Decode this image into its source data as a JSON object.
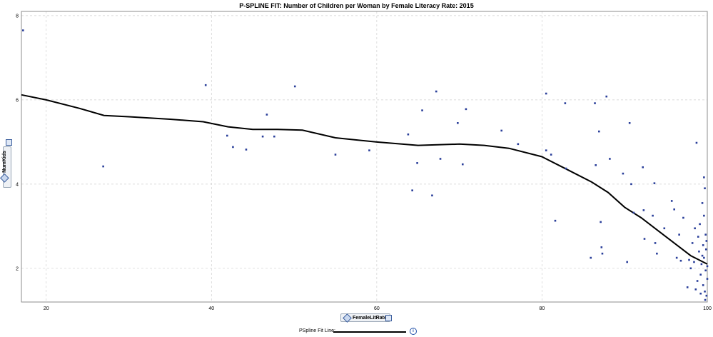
{
  "chart_data": {
    "type": "scatter",
    "title": "P-SPLINE FIT:  Number of Children per Woman by Female Literacy Rate:  2015",
    "xlabel": "FemaleLitRate",
    "ylabel": "NumKids",
    "xlim": [
      17,
      100
    ],
    "ylim": [
      1.2,
      8.1
    ],
    "xticks": [
      20,
      40,
      60,
      80,
      100
    ],
    "yticks": [
      2,
      4,
      6,
      8
    ],
    "grid": true,
    "legend": "bottom",
    "colors": {
      "points": "#2a3f9a",
      "line": "#000000",
      "grid": "#cfcfcf"
    },
    "points": [
      [
        17.2,
        7.65
      ],
      [
        26.9,
        4.42
      ],
      [
        39.3,
        6.35
      ],
      [
        41.9,
        5.15
      ],
      [
        42.6,
        4.88
      ],
      [
        44.2,
        4.82
      ],
      [
        46.7,
        5.65
      ],
      [
        46.2,
        5.13
      ],
      [
        47.6,
        5.13
      ],
      [
        50.1,
        6.32
      ],
      [
        55.0,
        4.7
      ],
      [
        59.1,
        4.8
      ],
      [
        63.8,
        5.18
      ],
      [
        64.3,
        3.85
      ],
      [
        64.9,
        4.5
      ],
      [
        65.5,
        5.75
      ],
      [
        66.7,
        3.73
      ],
      [
        67.2,
        6.2
      ],
      [
        67.7,
        4.6
      ],
      [
        69.8,
        5.45
      ],
      [
        70.4,
        4.47
      ],
      [
        70.8,
        5.78
      ],
      [
        75.1,
        5.27
      ],
      [
        77.1,
        4.95
      ],
      [
        80.5,
        6.15
      ],
      [
        80.5,
        4.8
      ],
      [
        81.1,
        4.7
      ],
      [
        81.6,
        3.13
      ],
      [
        82.8,
        5.92
      ],
      [
        82.9,
        4.37
      ],
      [
        85.9,
        2.25
      ],
      [
        86.4,
        5.92
      ],
      [
        86.5,
        4.45
      ],
      [
        86.9,
        5.25
      ],
      [
        87.1,
        3.1
      ],
      [
        87.2,
        2.5
      ],
      [
        87.3,
        2.35
      ],
      [
        87.8,
        6.08
      ],
      [
        88.2,
        4.6
      ],
      [
        89.8,
        4.25
      ],
      [
        90.3,
        2.15
      ],
      [
        90.6,
        5.45
      ],
      [
        90.8,
        4.0
      ],
      [
        91.1,
        3.32
      ],
      [
        92.2,
        4.4
      ],
      [
        92.3,
        3.38
      ],
      [
        92.4,
        2.7
      ],
      [
        93.4,
        3.25
      ],
      [
        93.6,
        4.02
      ],
      [
        93.7,
        2.6
      ],
      [
        93.9,
        2.35
      ],
      [
        94.8,
        2.95
      ],
      [
        95.7,
        3.6
      ],
      [
        96.0,
        3.4
      ],
      [
        96.3,
        2.25
      ],
      [
        96.8,
        2.18
      ],
      [
        97.1,
        3.2
      ],
      [
        97.6,
        1.55
      ],
      [
        97.8,
        2.2
      ],
      [
        98.0,
        2.0
      ],
      [
        98.2,
        2.6
      ],
      [
        98.5,
        2.95
      ],
      [
        98.6,
        1.5
      ],
      [
        98.7,
        4.98
      ],
      [
        98.8,
        1.7
      ],
      [
        99.0,
        2.4
      ],
      [
        99.1,
        3.05
      ],
      [
        99.2,
        1.85
      ],
      [
        99.3,
        2.1
      ],
      [
        99.4,
        3.55
      ],
      [
        99.5,
        2.55
      ],
      [
        99.5,
        1.6
      ],
      [
        99.6,
        4.16
      ],
      [
        99.6,
        2.25
      ],
      [
        99.7,
        1.45
      ],
      [
        99.7,
        3.9
      ],
      [
        99.8,
        2.8
      ],
      [
        99.8,
        1.95
      ],
      [
        99.9,
        2.65
      ],
      [
        99.9,
        1.35
      ],
      [
        100.0,
        2.05
      ],
      [
        100.0,
        1.75
      ],
      [
        99.85,
        2.45
      ],
      [
        99.75,
        1.25
      ],
      [
        98.4,
        2.15
      ],
      [
        99.2,
        1.4
      ],
      [
        96.6,
        2.8
      ],
      [
        99.4,
        2.3
      ],
      [
        98.9,
        2.75
      ],
      [
        99.6,
        3.25
      ]
    ],
    "line": {
      "name": "PSpline Fit Line",
      "points": [
        [
          17,
          6.12
        ],
        [
          20,
          6.0
        ],
        [
          24,
          5.8
        ],
        [
          27,
          5.63
        ],
        [
          30,
          5.6
        ],
        [
          35,
          5.54
        ],
        [
          39,
          5.48
        ],
        [
          42,
          5.36
        ],
        [
          45,
          5.3
        ],
        [
          48,
          5.3
        ],
        [
          51,
          5.28
        ],
        [
          55,
          5.1
        ],
        [
          60,
          5.0
        ],
        [
          65,
          4.92
        ],
        [
          70,
          4.95
        ],
        [
          73,
          4.92
        ],
        [
          76,
          4.85
        ],
        [
          80,
          4.65
        ],
        [
          83,
          4.35
        ],
        [
          86,
          4.05
        ],
        [
          88,
          3.8
        ],
        [
          90,
          3.45
        ],
        [
          92,
          3.2
        ],
        [
          94,
          2.9
        ],
        [
          96,
          2.6
        ],
        [
          98,
          2.3
        ],
        [
          100,
          2.1
        ]
      ]
    }
  }
}
